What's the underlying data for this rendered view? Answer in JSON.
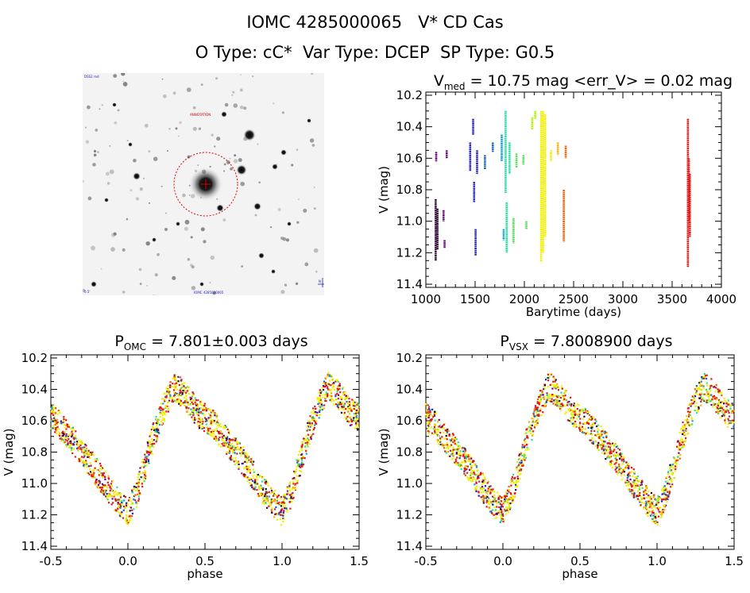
{
  "header": {
    "title": "IOMC 4285000065   V* CD Cas",
    "subtitle": "O Type: cC*  Var Type: DCEP  SP Type: G0.5"
  },
  "image_panel": {
    "top_left_label": "DSS2 red",
    "top_right_label": "N",
    "center_label": "ANNOTATION",
    "bottom_left_label": "0.5'",
    "bottom_center_label": "IOMC 4285000065"
  },
  "colors": {
    "sequence": [
      "#2a0030",
      "#6a0080",
      "#2020c0",
      "#1060d0",
      "#10a0d0",
      "#20e0a0",
      "#50e050",
      "#b0f000",
      "#f0f000",
      "#f8b000",
      "#f06000",
      "#e01818"
    ],
    "circle": "#e00000",
    "axis": "#000000"
  },
  "chart_data": [
    {
      "type": "scatter",
      "title_main": "V",
      "title_sub": "med",
      "title_rest": " = 10.75 mag <err_V> = 0.02 mag",
      "xlabel": "Barytime (days)",
      "ylabel": "V (mag)",
      "xlim": [
        1000,
        4000
      ],
      "ylim": [
        11.42,
        10.18
      ],
      "xticks": [
        1000,
        1500,
        2000,
        2500,
        3000,
        3500,
        4000
      ],
      "yticks": [
        10.2,
        10.4,
        10.6,
        10.8,
        11.0,
        11.2,
        11.4
      ],
      "series": [
        {
          "color": "#2a0030",
          "segments": [
            [
              1100,
              10.86,
              11.25
            ],
            [
              1118,
              10.92,
              11.18
            ]
          ]
        },
        {
          "color": "#6a0080",
          "segments": [
            [
              1105,
              10.56,
              10.62
            ],
            [
              1180,
              10.93,
              11.0
            ],
            [
              1190,
              11.12,
              11.17
            ],
            [
              1212,
              10.55,
              10.6
            ]
          ]
        },
        {
          "color": "#2020c0",
          "segments": [
            [
              1450,
              10.5,
              10.68
            ],
            [
              1480,
              10.35,
              10.45
            ],
            [
              1490,
              10.75,
              10.88
            ],
            [
              1505,
              11.05,
              11.22
            ],
            [
              1520,
              10.55,
              10.7
            ]
          ]
        },
        {
          "color": "#1060d0",
          "segments": [
            [
              1600,
              10.58,
              10.67
            ],
            [
              1680,
              10.5,
              10.56
            ]
          ]
        },
        {
          "color": "#10a0d0",
          "segments": [
            [
              1770,
              10.45,
              10.62
            ],
            [
              1790,
              11.05,
              11.12
            ]
          ]
        },
        {
          "color": "#20e0a0",
          "segments": [
            [
              1810,
              10.3,
              10.82
            ],
            [
              1820,
              10.88,
              11.2
            ],
            [
              1850,
              10.5,
              10.7
            ]
          ]
        },
        {
          "color": "#50e050",
          "segments": [
            [
              1890,
              10.98,
              11.14
            ],
            [
              1920,
              10.57,
              10.66
            ],
            [
              1990,
              10.58,
              10.64
            ],
            [
              2020,
              11.0,
              11.05
            ]
          ]
        },
        {
          "color": "#b0f000",
          "segments": [
            [
              2080,
              10.34,
              10.42
            ],
            [
              2110,
              10.3,
              10.35
            ]
          ]
        },
        {
          "color": "#f0f000",
          "segments": [
            [
              2170,
              10.3,
              11.26
            ],
            [
              2190,
              10.3,
              11.2
            ],
            [
              2210,
              10.32,
              11.1
            ],
            [
              2270,
              10.55,
              10.62
            ]
          ]
        },
        {
          "color": "#f8b000",
          "segments": [
            [
              2340,
              10.5,
              10.58
            ]
          ]
        },
        {
          "color": "#f06000",
          "segments": [
            [
              2400,
              10.8,
              11.13
            ],
            [
              2420,
              10.52,
              10.6
            ]
          ]
        },
        {
          "color": "#e01818",
          "segments": [
            [
              3660,
              10.35,
              11.29
            ],
            [
              3670,
              10.6,
              11.0
            ],
            [
              3680,
              10.7,
              11.1
            ]
          ]
        }
      ]
    },
    {
      "type": "scatter",
      "title_main": "P",
      "title_sub": "OMC",
      "title_rest": " = 7.801±0.003 days",
      "xlabel": "phase",
      "ylabel": "V (mag)",
      "xlim": [
        -0.5,
        1.5
      ],
      "ylim": [
        11.42,
        10.18
      ],
      "xticks": [
        -0.5,
        0.0,
        0.5,
        1.0,
        1.5
      ],
      "xtick_labels": [
        "-0.5",
        "0.0",
        "0.5",
        "1.0",
        "1.5"
      ],
      "yticks": [
        10.2,
        10.4,
        10.6,
        10.8,
        11.0,
        11.2,
        11.4
      ],
      "curve_phase": [
        0.0,
        0.05,
        0.1,
        0.15,
        0.2,
        0.25,
        0.3,
        0.35,
        0.4,
        0.45,
        0.5,
        0.55,
        0.6,
        0.65,
        0.7,
        0.75,
        0.8,
        0.85,
        0.9,
        0.95,
        1.0
      ],
      "curve_mag": [
        11.18,
        11.08,
        10.92,
        10.75,
        10.6,
        10.48,
        10.38,
        10.42,
        10.48,
        10.55,
        10.58,
        10.62,
        10.68,
        10.74,
        10.8,
        10.86,
        10.93,
        11.0,
        11.07,
        11.13,
        11.18
      ],
      "scatter": 0.09
    },
    {
      "type": "scatter",
      "title_main": "P",
      "title_sub": "VSX",
      "title_rest": " = 7.8008900 days",
      "xlabel": "phase",
      "ylabel": "V (mag)",
      "xlim": [
        -0.5,
        1.5
      ],
      "ylim": [
        11.42,
        10.18
      ],
      "xticks": [
        -0.5,
        0.0,
        0.5,
        1.0,
        1.5
      ],
      "xtick_labels": [
        "-0.5",
        "0.0",
        "0.5",
        "1.0",
        "1.5"
      ],
      "yticks": [
        10.2,
        10.4,
        10.6,
        10.8,
        11.0,
        11.2,
        11.4
      ],
      "curve_phase": [
        0.0,
        0.05,
        0.1,
        0.15,
        0.2,
        0.25,
        0.3,
        0.35,
        0.4,
        0.45,
        0.5,
        0.55,
        0.6,
        0.65,
        0.7,
        0.75,
        0.8,
        0.85,
        0.9,
        0.95,
        1.0
      ],
      "curve_mag": [
        11.18,
        11.08,
        10.92,
        10.75,
        10.6,
        10.48,
        10.38,
        10.42,
        10.48,
        10.55,
        10.58,
        10.62,
        10.68,
        10.74,
        10.8,
        10.86,
        10.93,
        11.0,
        11.07,
        11.13,
        11.18
      ],
      "scatter": 0.09
    }
  ]
}
